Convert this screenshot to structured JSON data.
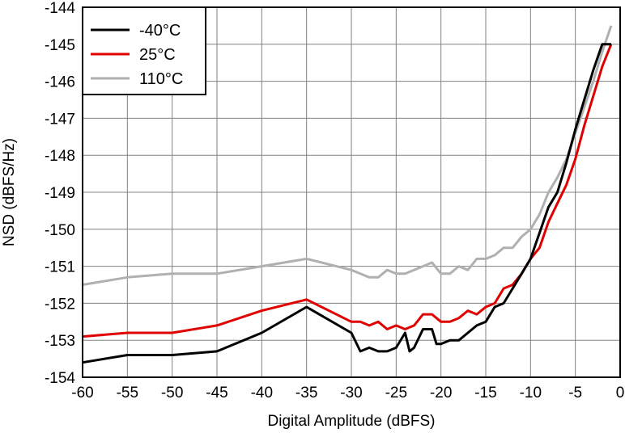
{
  "chart_data": {
    "type": "line",
    "title": "",
    "xlabel": "Digital Amplitude (dBFS)",
    "ylabel": "NSD (dBFS/Hz)",
    "xlim": [
      -60,
      0
    ],
    "ylim": [
      -154,
      -144
    ],
    "xticks": [
      -60,
      -55,
      -50,
      -45,
      -40,
      -35,
      -30,
      -25,
      -20,
      -15,
      -10,
      -5,
      0
    ],
    "yticks": [
      -154,
      -153,
      -152,
      -151,
      -150,
      -149,
      -148,
      -147,
      -146,
      -145,
      -144
    ],
    "grid": true,
    "legend_position": "top-left",
    "series": [
      {
        "name": "-40°C",
        "color": "#000000",
        "x": [
          -60,
          -55,
          -50,
          -45,
          -40,
          -35,
          -30,
          -29,
          -28,
          -27,
          -26,
          -25,
          -24,
          -23.5,
          -23,
          -22,
          -21,
          -20.5,
          -20,
          -19,
          -18,
          -17,
          -16,
          -15,
          -14,
          -13,
          -12,
          -11,
          -10,
          -9,
          -8,
          -7,
          -6,
          -5,
          -4,
          -3,
          -2,
          -1
        ],
        "values": [
          -153.6,
          -153.4,
          -153.4,
          -153.3,
          -152.8,
          -152.1,
          -152.8,
          -153.3,
          -153.2,
          -153.3,
          -153.3,
          -153.2,
          -152.8,
          -153.3,
          -153.2,
          -152.7,
          -152.7,
          -153.1,
          -153.1,
          -153.0,
          -153.0,
          -152.8,
          -152.6,
          -152.5,
          -152.1,
          -152.0,
          -151.6,
          -151.2,
          -150.8,
          -150.1,
          -149.4,
          -149.0,
          -148.2,
          -147.3,
          -146.5,
          -145.7,
          -145.0,
          -145.0
        ]
      },
      {
        "name": "25°C",
        "color": "#e00000",
        "x": [
          -60,
          -55,
          -50,
          -45,
          -40,
          -35,
          -30,
          -29,
          -28,
          -27,
          -26,
          -25,
          -24,
          -23,
          -22,
          -21,
          -20,
          -19,
          -18,
          -17,
          -16,
          -15,
          -14,
          -13,
          -12,
          -11,
          -10,
          -9,
          -8,
          -7,
          -6,
          -5,
          -4,
          -3,
          -2,
          -1
        ],
        "values": [
          -152.9,
          -152.8,
          -152.8,
          -152.6,
          -152.2,
          -151.9,
          -152.5,
          -152.5,
          -152.6,
          -152.5,
          -152.7,
          -152.6,
          -152.7,
          -152.6,
          -152.3,
          -152.3,
          -152.5,
          -152.5,
          -152.4,
          -152.2,
          -152.3,
          -152.1,
          -152.0,
          -151.6,
          -151.5,
          -151.2,
          -150.8,
          -150.5,
          -149.8,
          -149.3,
          -148.8,
          -148.1,
          -147.2,
          -146.4,
          -145.6,
          -145.0
        ]
      },
      {
        "name": "110°C",
        "color": "#b0b0b0",
        "x": [
          -60,
          -55,
          -50,
          -45,
          -40,
          -35,
          -30,
          -29,
          -28,
          -27,
          -26,
          -25,
          -24,
          -23,
          -22,
          -21,
          -20,
          -19,
          -18,
          -17,
          -16,
          -15,
          -14,
          -13,
          -12,
          -11,
          -10,
          -9,
          -8,
          -7,
          -6,
          -5,
          -4,
          -3,
          -2,
          -1
        ],
        "values": [
          -151.5,
          -151.3,
          -151.2,
          -151.2,
          -151.0,
          -150.8,
          -151.1,
          -151.2,
          -151.3,
          -151.3,
          -151.1,
          -151.2,
          -151.2,
          -151.1,
          -151.0,
          -150.9,
          -151.2,
          -151.2,
          -151.0,
          -151.1,
          -150.8,
          -150.8,
          -150.7,
          -150.5,
          -150.5,
          -150.2,
          -150.0,
          -149.6,
          -149.0,
          -148.6,
          -148.1,
          -147.4,
          -146.7,
          -146.0,
          -145.2,
          -144.5
        ]
      }
    ]
  }
}
